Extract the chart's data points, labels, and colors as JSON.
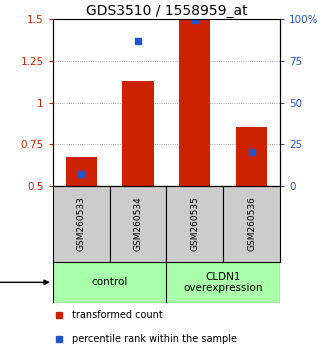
{
  "title": "GDS3510 / 1558959_at",
  "samples": [
    "GSM260533",
    "GSM260534",
    "GSM260535",
    "GSM260536"
  ],
  "red_values": [
    0.672,
    1.13,
    1.5,
    0.855
  ],
  "blue_values": [
    0.572,
    1.368,
    1.494,
    0.705
  ],
  "ylim_left": [
    0.5,
    1.5
  ],
  "ylim_right": [
    0,
    100
  ],
  "yticks_left": [
    0.5,
    0.75,
    1.0,
    1.25,
    1.5
  ],
  "ytick_labels_left": [
    "0.5",
    "0.75",
    "1",
    "1.25",
    "1.5"
  ],
  "yticks_right": [
    0,
    25,
    50,
    75,
    100
  ],
  "ytick_labels_right": [
    "0",
    "25",
    "50",
    "75",
    "100%"
  ],
  "bar_color": "#cc2200",
  "dot_color": "#2255cc",
  "bar_baseline": 0.5,
  "bar_width": 0.55,
  "protocol_labels": [
    "control",
    "CLDN1\noverexpression"
  ],
  "protocol_color": "#aaffaa",
  "sample_box_color": "#cccccc",
  "grid_color": "#888888",
  "title_fontsize": 10,
  "tick_fontsize": 7.5,
  "sample_fontsize": 6.5,
  "legend_fontsize": 7,
  "protocol_fontsize": 7.5
}
